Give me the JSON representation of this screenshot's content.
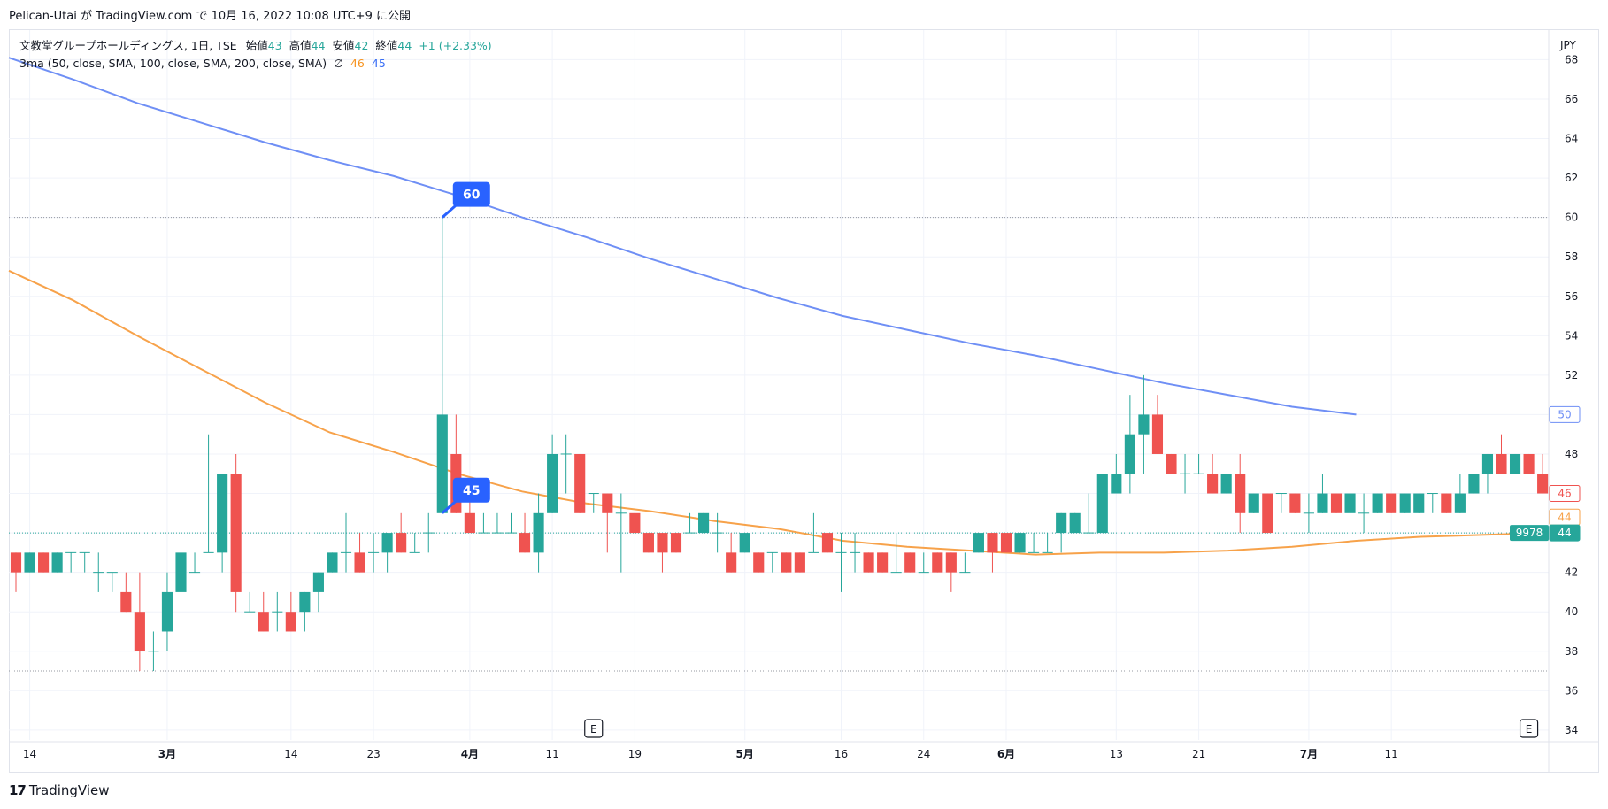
{
  "header": {
    "text": "Pelican-Utai が TradingView.com で 10月 16, 2022 10:08 UTC+9 に公開"
  },
  "legend": {
    "symbol": "文教堂グループホールディングス, 1日, TSE",
    "open_label": "始値",
    "open_value": "43",
    "high_label": "高値",
    "high_value": "44",
    "low_label": "安値",
    "low_value": "42",
    "close_label": "終値",
    "close_value": "44",
    "change": "+1 (+2.33%)",
    "indicator": "3ma (50, close, SMA, 100, close, SMA, 200, close, SMA)",
    "indicator_symbol": "∅",
    "ma100_value": "46",
    "ma200_value": "45"
  },
  "footer": {
    "logo_mark": "17",
    "logo_text": "TradingView"
  },
  "colors": {
    "up": "#26a69a",
    "down": "#ef5350",
    "ma100": "#f7a24a",
    "ma200": "#6f8ff5",
    "callout": "#2962ff",
    "grid": "#f0f3fa",
    "axis_text": "#131722"
  },
  "chart_data": {
    "type": "candlestick",
    "currency": "JPY",
    "ylim": [
      33.5,
      69.5
    ],
    "y_ticks": [
      34,
      36,
      38,
      40,
      42,
      44,
      46,
      48,
      50,
      52,
      54,
      56,
      58,
      60,
      62,
      64,
      66,
      68
    ],
    "x_labels": [
      {
        "label": "14",
        "date": "2022-02-14"
      },
      {
        "label": "3月",
        "date": "2022-03-01"
      },
      {
        "label": "14",
        "date": "2022-03-14"
      },
      {
        "label": "23",
        "date": "2022-03-23"
      },
      {
        "label": "4月",
        "date": "2022-04-01"
      },
      {
        "label": "11",
        "date": "2022-04-11"
      },
      {
        "label": "19",
        "date": "2022-04-19"
      },
      {
        "label": "5月",
        "date": "2022-05-02"
      },
      {
        "label": "16",
        "date": "2022-05-16"
      },
      {
        "label": "24",
        "date": "2022-05-24"
      },
      {
        "label": "6月",
        "date": "2022-06-01"
      },
      {
        "label": "13",
        "date": "2022-06-13"
      },
      {
        "label": "21",
        "date": "2022-06-21"
      },
      {
        "label": "7月",
        "date": "2022-07-01"
      },
      {
        "label": "11",
        "date": "2022-07-11"
      }
    ],
    "ohlc": [
      [
        "2022-02-10",
        43,
        43,
        41,
        42
      ],
      [
        "2022-02-14",
        42,
        43,
        42,
        43
      ],
      [
        "2022-02-15",
        43,
        43,
        42,
        42
      ],
      [
        "2022-02-16",
        42,
        43,
        42,
        43
      ],
      [
        "2022-02-17",
        43,
        43,
        42,
        43
      ],
      [
        "2022-02-18",
        43,
        43,
        42,
        43
      ],
      [
        "2022-02-21",
        42,
        43,
        41,
        42
      ],
      [
        "2022-02-22",
        42,
        42,
        41,
        42
      ],
      [
        "2022-02-24",
        41,
        42,
        40,
        40
      ],
      [
        "2022-02-25",
        40,
        42,
        37,
        38
      ],
      [
        "2022-02-28",
        38,
        39,
        37,
        38
      ],
      [
        "2022-03-01",
        39,
        42,
        38,
        41
      ],
      [
        "2022-03-02",
        41,
        43,
        41,
        43
      ],
      [
        "2022-03-03",
        42,
        43,
        42,
        42
      ],
      [
        "2022-03-04",
        43,
        49,
        43,
        43
      ],
      [
        "2022-03-07",
        43,
        47,
        42,
        47
      ],
      [
        "2022-03-08",
        47,
        48,
        40,
        41
      ],
      [
        "2022-03-09",
        40,
        41,
        40,
        40
      ],
      [
        "2022-03-10",
        40,
        41,
        39,
        39
      ],
      [
        "2022-03-11",
        40,
        41,
        39,
        40
      ],
      [
        "2022-03-14",
        40,
        41,
        39,
        39
      ],
      [
        "2022-03-15",
        40,
        41,
        39,
        41
      ],
      [
        "2022-03-16",
        41,
        42,
        40,
        42
      ],
      [
        "2022-03-17",
        42,
        43,
        42,
        43
      ],
      [
        "2022-03-18",
        43,
        45,
        42,
        43
      ],
      [
        "2022-03-22",
        43,
        44,
        42,
        42
      ],
      [
        "2022-03-23",
        43,
        44,
        42,
        43
      ],
      [
        "2022-03-24",
        43,
        44,
        42,
        44
      ],
      [
        "2022-03-25",
        44,
        45,
        43,
        43
      ],
      [
        "2022-03-28",
        43,
        44,
        43,
        43
      ],
      [
        "2022-03-29",
        44,
        45,
        43,
        44
      ],
      [
        "2022-03-30",
        45,
        60,
        45,
        50
      ],
      [
        "2022-03-31",
        48,
        50,
        45,
        45
      ],
      [
        "2022-04-01",
        45,
        46,
        44,
        44
      ],
      [
        "2022-04-04",
        44,
        45,
        44,
        44
      ],
      [
        "2022-04-05",
        44,
        45,
        44,
        44
      ],
      [
        "2022-04-06",
        44,
        45,
        44,
        44
      ],
      [
        "2022-04-07",
        44,
        45,
        43,
        43
      ],
      [
        "2022-04-08",
        43,
        46,
        42,
        45
      ],
      [
        "2022-04-11",
        45,
        49,
        45,
        48
      ],
      [
        "2022-04-12",
        48,
        49,
        46,
        48
      ],
      [
        "2022-04-13",
        48,
        48,
        45,
        45
      ],
      [
        "2022-04-14",
        46,
        46,
        45,
        46
      ],
      [
        "2022-04-15",
        46,
        46,
        43,
        45
      ],
      [
        "2022-04-18",
        45,
        46,
        42,
        45
      ],
      [
        "2022-04-19",
        45,
        45,
        44,
        44
      ],
      [
        "2022-04-20",
        44,
        44,
        43,
        43
      ],
      [
        "2022-04-21",
        44,
        44,
        42,
        43
      ],
      [
        "2022-04-22",
        44,
        44,
        43,
        43
      ],
      [
        "2022-04-25",
        44,
        45,
        44,
        44
      ],
      [
        "2022-04-26",
        44,
        45,
        44,
        45
      ],
      [
        "2022-04-27",
        44,
        45,
        43,
        44
      ],
      [
        "2022-04-28",
        43,
        44,
        42,
        42
      ],
      [
        "2022-05-02",
        43,
        44,
        43,
        44
      ],
      [
        "2022-05-06",
        43,
        43,
        42,
        42
      ],
      [
        "2022-05-09",
        43,
        43,
        42,
        43
      ],
      [
        "2022-05-10",
        43,
        43,
        42,
        42
      ],
      [
        "2022-05-11",
        43,
        43,
        42,
        42
      ],
      [
        "2022-05-12",
        43,
        45,
        43,
        43
      ],
      [
        "2022-05-13",
        44,
        44,
        43,
        43
      ],
      [
        "2022-05-16",
        43,
        44,
        41,
        43
      ],
      [
        "2022-05-17",
        43,
        44,
        42,
        43
      ],
      [
        "2022-05-18",
        43,
        43,
        42,
        42
      ],
      [
        "2022-05-19",
        43,
        43,
        42,
        42
      ],
      [
        "2022-05-20",
        42,
        44,
        42,
        42
      ],
      [
        "2022-05-23",
        43,
        43,
        42,
        42
      ],
      [
        "2022-05-24",
        42,
        43,
        42,
        42
      ],
      [
        "2022-05-25",
        43,
        43,
        42,
        42
      ],
      [
        "2022-05-26",
        43,
        43,
        41,
        42
      ],
      [
        "2022-05-27",
        42,
        43,
        42,
        42
      ],
      [
        "2022-05-30",
        43,
        44,
        43,
        44
      ],
      [
        "2022-05-31",
        44,
        44,
        42,
        43
      ],
      [
        "2022-06-01",
        44,
        44,
        43,
        43
      ],
      [
        "2022-06-02",
        43,
        44,
        43,
        44
      ],
      [
        "2022-06-03",
        43,
        44,
        43,
        43
      ],
      [
        "2022-06-06",
        43,
        44,
        43,
        43
      ],
      [
        "2022-06-07",
        44,
        45,
        43,
        45
      ],
      [
        "2022-06-08",
        44,
        45,
        44,
        45
      ],
      [
        "2022-06-09",
        44,
        46,
        44,
        44
      ],
      [
        "2022-06-10",
        44,
        47,
        44,
        47
      ],
      [
        "2022-06-13",
        46,
        48,
        46,
        47
      ],
      [
        "2022-06-14",
        47,
        51,
        46,
        49
      ],
      [
        "2022-06-15",
        49,
        52,
        47,
        50
      ],
      [
        "2022-06-16",
        50,
        51,
        48,
        48
      ],
      [
        "2022-06-17",
        48,
        48,
        47,
        47
      ],
      [
        "2022-06-20",
        47,
        48,
        46,
        47
      ],
      [
        "2022-06-21",
        47,
        48,
        47,
        47
      ],
      [
        "2022-06-22",
        47,
        48,
        46,
        46
      ],
      [
        "2022-06-23",
        46,
        47,
        46,
        47
      ],
      [
        "2022-06-24",
        47,
        48,
        44,
        45
      ],
      [
        "2022-06-27",
        45,
        46,
        45,
        46
      ],
      [
        "2022-06-28",
        46,
        46,
        44,
        44
      ],
      [
        "2022-06-29",
        46,
        46,
        45,
        46
      ],
      [
        "2022-06-30",
        46,
        46,
        45,
        45
      ],
      [
        "2022-07-01",
        45,
        46,
        44,
        45
      ],
      [
        "2022-07-04",
        45,
        47,
        45,
        46
      ],
      [
        "2022-07-05",
        46,
        46,
        45,
        45
      ],
      [
        "2022-07-06",
        45,
        46,
        45,
        46
      ],
      [
        "2022-07-07",
        45,
        46,
        44,
        45
      ],
      [
        "2022-07-08",
        45,
        46,
        45,
        46
      ],
      [
        "2022-07-11",
        46,
        46,
        45,
        45
      ],
      [
        "2022-07-12",
        45,
        46,
        45,
        46
      ],
      [
        "2022-07-13",
        45,
        46,
        45,
        46
      ],
      [
        "2022-07-14",
        46,
        46,
        45,
        46
      ],
      [
        "2022-07-15",
        46,
        46,
        45,
        45
      ],
      [
        "2022-07-19",
        45,
        47,
        45,
        46
      ],
      [
        "2022-07-20",
        46,
        47,
        46,
        47
      ],
      [
        "2022-07-21",
        47,
        48,
        46,
        48
      ],
      [
        "2022-07-22",
        48,
        49,
        47,
        47
      ],
      [
        "2022-07-25",
        47,
        48,
        47,
        48
      ],
      [
        "2022-07-26",
        48,
        48,
        47,
        47
      ],
      [
        "2022-07-27",
        47,
        48,
        46,
        46
      ]
    ],
    "ma100": [
      [
        0,
        57.3
      ],
      [
        6,
        55.8
      ],
      [
        12,
        54.0
      ],
      [
        18,
        52.3
      ],
      [
        24,
        50.6
      ],
      [
        30,
        49.1
      ],
      [
        36,
        48.1
      ],
      [
        42,
        47.0
      ],
      [
        48,
        46.1
      ],
      [
        54,
        45.5
      ],
      [
        60,
        45.1
      ],
      [
        66,
        44.6
      ],
      [
        72,
        44.2
      ],
      [
        78,
        43.6
      ],
      [
        84,
        43.3
      ],
      [
        90,
        43.1
      ],
      [
        96,
        42.9
      ],
      [
        102,
        43.0
      ],
      [
        108,
        43.0
      ],
      [
        114,
        43.1
      ],
      [
        120,
        43.3
      ],
      [
        126,
        43.6
      ],
      [
        132,
        43.8
      ],
      [
        138,
        43.9
      ],
      [
        144,
        44.0
      ]
    ],
    "ma200": [
      [
        0,
        68.1
      ],
      [
        6,
        67.0
      ],
      [
        12,
        65.8
      ],
      [
        18,
        64.8
      ],
      [
        24,
        63.8
      ],
      [
        30,
        62.9
      ],
      [
        36,
        62.1
      ],
      [
        42,
        61.1
      ],
      [
        48,
        60.0
      ],
      [
        54,
        59.0
      ],
      [
        60,
        57.9
      ],
      [
        66,
        56.9
      ],
      [
        72,
        55.9
      ],
      [
        78,
        55.0
      ],
      [
        84,
        54.3
      ],
      [
        90,
        53.6
      ],
      [
        96,
        53.0
      ],
      [
        102,
        52.3
      ],
      [
        108,
        51.6
      ],
      [
        114,
        51.0
      ],
      [
        120,
        50.4
      ],
      [
        126,
        50.0
      ]
    ],
    "horizontal_lines": [
      60,
      44,
      37
    ],
    "callouts": [
      {
        "value": "60",
        "date": "2022-03-30",
        "price": 60
      },
      {
        "value": "45",
        "date": "2022-03-30",
        "price": 45
      }
    ],
    "earnings_markers": [
      {
        "label": "E",
        "date": "2022-04-14"
      },
      {
        "label": "E",
        "date": "2022-07-26"
      }
    ],
    "price_labels": [
      {
        "value": "50",
        "price": 50,
        "style": "ma200"
      },
      {
        "value": "46",
        "price": 46,
        "style": "down"
      },
      {
        "value": "44",
        "price": 44.8,
        "style": "ma100"
      },
      {
        "value": "44",
        "price": 44,
        "style": "last"
      }
    ],
    "countdown": "9978"
  }
}
